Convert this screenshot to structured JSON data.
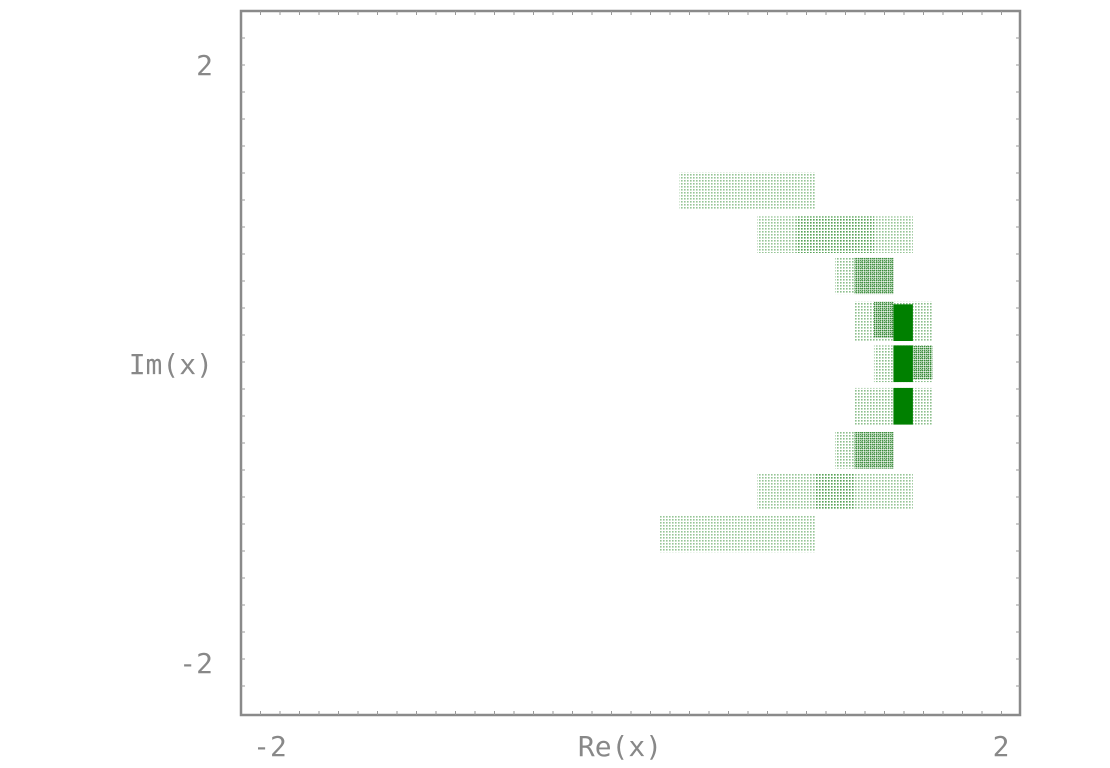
{
  "chart_data": {
    "type": "heatmap",
    "title": "",
    "xlabel": "Re(x)",
    "ylabel": "Im(x)",
    "xlim": [
      -2,
      2
    ],
    "ylim": [
      -2.4,
      2.4
    ],
    "x_tick_labels": [
      "-2",
      "2"
    ],
    "y_tick_labels": [
      "2",
      "-2"
    ],
    "x_ticks": [
      -2,
      2
    ],
    "y_ticks": [
      2,
      -2
    ],
    "grid": false,
    "legend": "none",
    "color": "#008000",
    "cells": [
      {
        "x0": 0.25,
        "x1": 0.95,
        "y0": 1.05,
        "y1": 1.3,
        "level": 0.25
      },
      {
        "x0": 0.65,
        "x1": 1.45,
        "y0": 0.75,
        "y1": 1.0,
        "level": 0.25
      },
      {
        "x0": 0.85,
        "x1": 1.25,
        "y0": 0.75,
        "y1": 1.0,
        "level": 0.35
      },
      {
        "x0": 1.05,
        "x1": 1.35,
        "y0": 0.47,
        "y1": 0.72,
        "level": 0.3
      },
      {
        "x0": 1.15,
        "x1": 1.35,
        "y0": 0.47,
        "y1": 0.72,
        "level": 0.55
      },
      {
        "x0": 1.15,
        "x1": 1.55,
        "y0": 0.15,
        "y1": 0.42,
        "level": 0.3
      },
      {
        "x0": 1.25,
        "x1": 1.35,
        "y0": 0.17,
        "y1": 0.42,
        "level": 0.6
      },
      {
        "x0": 1.35,
        "x1": 1.45,
        "y0": 0.15,
        "y1": 0.4,
        "level": 1.0
      },
      {
        "x0": 1.25,
        "x1": 1.55,
        "y0": -0.13,
        "y1": 0.12,
        "level": 0.3
      },
      {
        "x0": 1.45,
        "x1": 1.55,
        "y0": -0.11,
        "y1": 0.12,
        "level": 0.6
      },
      {
        "x0": 1.35,
        "x1": 1.45,
        "y0": -0.13,
        "y1": 0.12,
        "level": 1.0
      },
      {
        "x0": 1.15,
        "x1": 1.55,
        "y0": -0.42,
        "y1": -0.17,
        "level": 0.3
      },
      {
        "x0": 1.35,
        "x1": 1.45,
        "y0": -0.42,
        "y1": -0.17,
        "level": 1.0
      },
      {
        "x0": 1.05,
        "x1": 1.35,
        "y0": -0.72,
        "y1": -0.47,
        "level": 0.3
      },
      {
        "x0": 1.15,
        "x1": 1.35,
        "y0": -0.72,
        "y1": -0.47,
        "level": 0.55
      },
      {
        "x0": 0.65,
        "x1": 1.45,
        "y0": -1.0,
        "y1": -0.75,
        "level": 0.25
      },
      {
        "x0": 0.95,
        "x1": 1.15,
        "y0": -1.0,
        "y1": -0.75,
        "level": 0.35
      },
      {
        "x0": 0.15,
        "x1": 0.95,
        "y0": -1.29,
        "y1": -1.04,
        "level": 0.25
      }
    ]
  }
}
